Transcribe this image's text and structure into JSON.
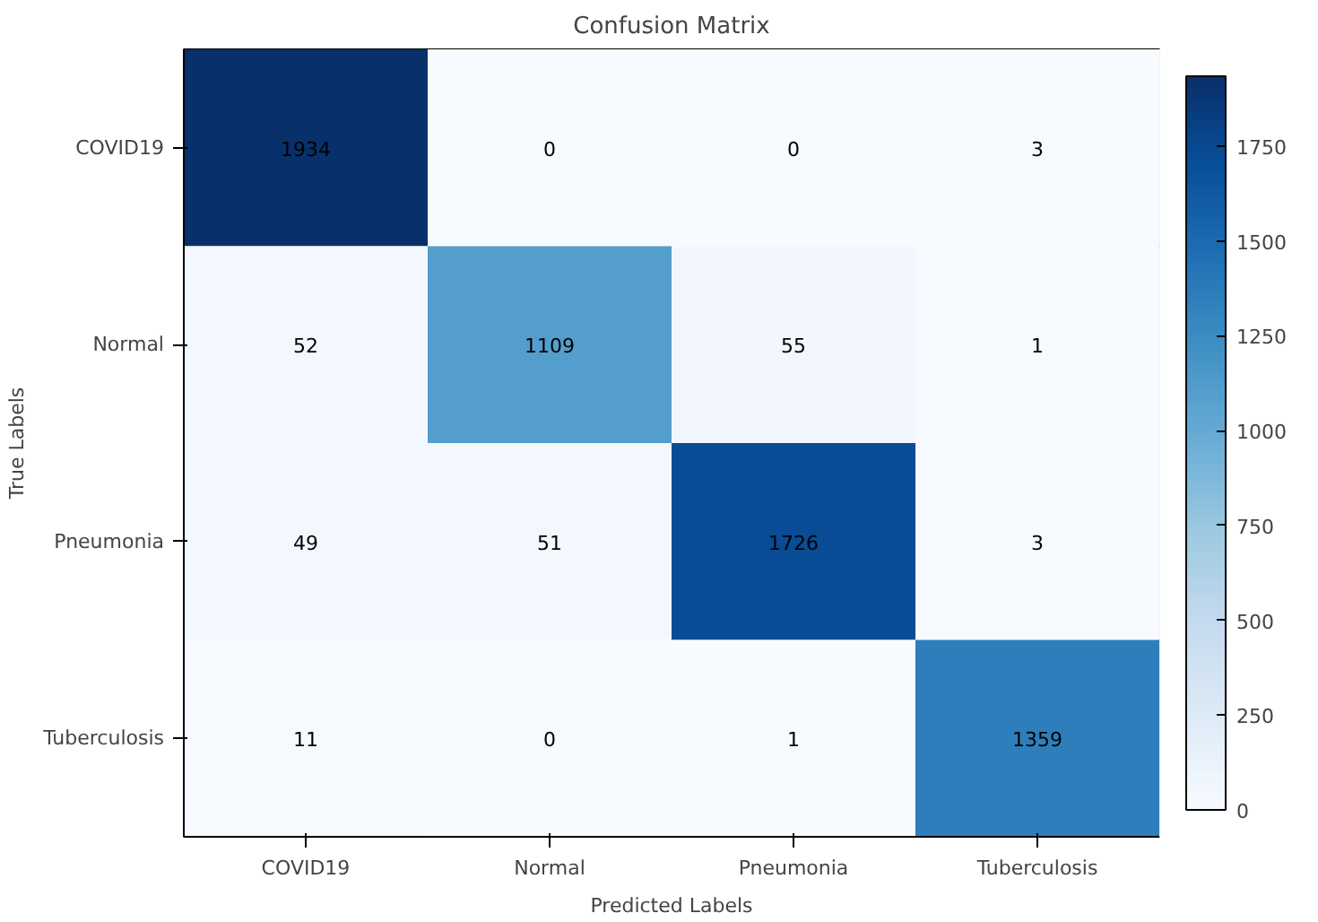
{
  "chart_data": {
    "type": "heatmap",
    "title": "Confusion Matrix",
    "xlabel": "Predicted Labels",
    "ylabel": "True Labels",
    "categories": [
      "COVID19",
      "Normal",
      "Pneumonia",
      "Tuberculosis"
    ],
    "y_categories": [
      "COVID19",
      "Normal",
      "Pneumonia",
      "Tuberculosis"
    ],
    "cells": [
      [
        1934,
        0,
        0,
        3
      ],
      [
        52,
        1109,
        55,
        1
      ],
      [
        49,
        51,
        1726,
        3
      ],
      [
        11,
        0,
        1,
        1359
      ]
    ],
    "clim": [
      0,
      1934
    ],
    "cticks": [
      0,
      250,
      500,
      750,
      1000,
      1250,
      1500,
      1750
    ],
    "data_labels": true,
    "grid": false
  }
}
